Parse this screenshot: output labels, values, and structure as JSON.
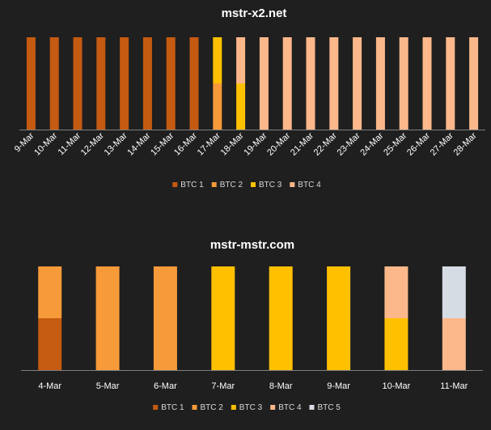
{
  "chart_data": [
    {
      "type": "bar",
      "stacked": true,
      "title": "mstr-x2.net",
      "categories": [
        "9-Mar",
        "10-Mar",
        "11-Mar",
        "12-Mar",
        "13-Mar",
        "14-Mar",
        "15-Mar",
        "16-Mar",
        "17-Mar",
        "18-Mar",
        "19-Mar",
        "20-Mar",
        "21-Mar",
        "22-Mar",
        "23-Mar",
        "24-Mar",
        "25-Mar",
        "26-Mar",
        "27-Mar",
        "28-Mar"
      ],
      "series": [
        {
          "name": "BTC 1",
          "color": "#c55a11",
          "values": [
            1,
            1,
            1,
            1,
            1,
            1,
            1,
            1,
            0,
            0,
            0,
            0,
            0,
            0,
            0,
            0,
            0,
            0,
            0,
            0
          ]
        },
        {
          "name": "BTC 2",
          "color": "#f79a3a",
          "values": [
            0,
            0,
            0,
            0,
            0,
            0,
            0,
            0,
            0.5,
            0,
            0,
            0,
            0,
            0,
            0,
            0,
            0,
            0,
            0,
            0
          ]
        },
        {
          "name": "BTC 3",
          "color": "#ffc000",
          "values": [
            0,
            0,
            0,
            0,
            0,
            0,
            0,
            0,
            0.5,
            0.5,
            0,
            0,
            0,
            0,
            0,
            0,
            0,
            0,
            0,
            0
          ]
        },
        {
          "name": "BTC 4",
          "color": "#fcb88a",
          "values": [
            0,
            0,
            0,
            0,
            0,
            0,
            0,
            0,
            0,
            0.5,
            1,
            1,
            1,
            1,
            1,
            1,
            1,
            1,
            1,
            1
          ]
        }
      ],
      "ylim": [
        0,
        1
      ],
      "xlabel": "",
      "ylabel": "",
      "grid": false,
      "legend_position": "bottom",
      "x_tick_rotation": "rotated"
    },
    {
      "type": "bar",
      "stacked": true,
      "title": "mstr-mstr.com",
      "categories": [
        "4-Mar",
        "5-Mar",
        "6-Mar",
        "7-Mar",
        "8-Mar",
        "9-Mar",
        "10-Mar",
        "11-Mar"
      ],
      "series": [
        {
          "name": "BTC 1",
          "color": "#c55a11",
          "values": [
            0.5,
            0,
            0,
            0,
            0,
            0,
            0,
            0
          ]
        },
        {
          "name": "BTC 2",
          "color": "#f79a3a",
          "values": [
            0.5,
            1,
            1,
            0,
            0,
            0,
            0,
            0
          ]
        },
        {
          "name": "BTC 3",
          "color": "#ffc000",
          "values": [
            0,
            0,
            0,
            1,
            1,
            1,
            0.5,
            0
          ]
        },
        {
          "name": "BTC 4",
          "color": "#fcb88a",
          "values": [
            0,
            0,
            0,
            0,
            0,
            0,
            0.5,
            0.5
          ]
        },
        {
          "name": "BTC 5",
          "color": "#d6dce4",
          "values": [
            0,
            0,
            0,
            0,
            0,
            0,
            0,
            0.5
          ]
        }
      ],
      "ylim": [
        0,
        1
      ],
      "xlabel": "",
      "ylabel": "",
      "grid": false,
      "legend_position": "bottom",
      "x_tick_rotation": "none"
    }
  ]
}
